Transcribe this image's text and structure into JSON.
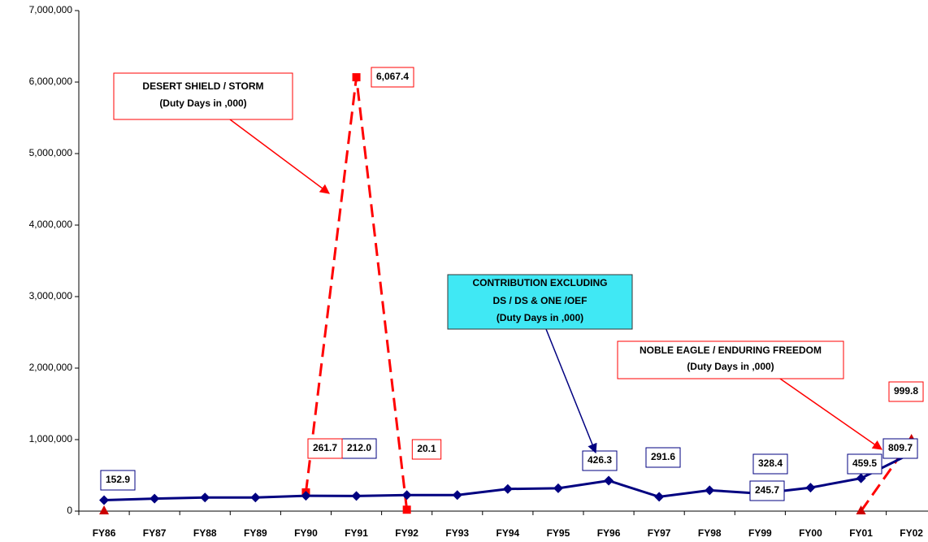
{
  "chart_data": {
    "type": "line",
    "categories": [
      "FY86",
      "FY87",
      "FY88",
      "FY89",
      "FY90",
      "FY91",
      "FY92",
      "FY93",
      "FY94",
      "FY95",
      "FY96",
      "FY97",
      "FY98",
      "FY99",
      "FY00",
      "FY01",
      "FY02"
    ],
    "series": [
      {
        "color": "#000080",
        "dash": false,
        "marker": "diamond",
        "values": [
          152900,
          175000,
          190000,
          190000,
          215000,
          212000,
          225000,
          225000,
          310000,
          320000,
          426300,
          200000,
          291600,
          245700,
          328400,
          459500,
          809700
        ],
        "value_labels": [
          "152.9",
          null,
          null,
          null,
          null,
          "212.0",
          null,
          null,
          null,
          null,
          "426.3",
          null,
          "291.6",
          "245.7",
          "328.4",
          "459.5",
          "809.7"
        ]
      },
      {
        "color": "#ff0000",
        "dash": true,
        "marker": "square",
        "values": [
          null,
          null,
          null,
          null,
          261700,
          6067400,
          20100,
          null,
          null,
          null,
          null,
          null,
          null,
          null,
          null,
          null,
          null
        ],
        "value_labels": [
          null,
          null,
          null,
          null,
          "261.7",
          "6,067.4",
          "20.1",
          null,
          null,
          null,
          null,
          null,
          null,
          null,
          null,
          null,
          null
        ]
      },
      {
        "color": "#ff0000",
        "dash": true,
        "marker": "triangle",
        "values": [
          0,
          null,
          null,
          null,
          null,
          null,
          null,
          null,
          null,
          null,
          null,
          null,
          null,
          null,
          null,
          0,
          999800
        ],
        "value_labels": [
          null,
          null,
          null,
          null,
          null,
          null,
          null,
          null,
          null,
          null,
          null,
          null,
          null,
          null,
          null,
          null,
          "999.8"
        ]
      }
    ],
    "ylim": [
      0,
      7000000
    ],
    "yticks": [
      0,
      {
        "value": 1000000,
        "label": "1,000,000"
      },
      {
        "value": 2000000,
        "label": "2,000,000"
      },
      {
        "value": 3000000,
        "label": "3,000,000"
      },
      {
        "value": 4000000,
        "label": "4,000,000"
      },
      {
        "value": 5000000,
        "label": "5,000,000"
      },
      {
        "value": 6000000,
        "label": "6,000,000"
      },
      {
        "value": 7000000,
        "label": "7,000,000"
      }
    ],
    "annotations": [
      {
        "lines": [
          "DESERT SHIELD / STORM",
          "(Duty Days in ,000)"
        ]
      },
      {
        "lines": [
          "CONTRIBUTION EXCLUDING",
          "DS / DS & ONE /OEF",
          "(Duty Days in ,000)"
        ]
      },
      {
        "lines": [
          "NOBLE EAGLE / ENDURING FREEDOM",
          "(Duty Days in ,000)"
        ]
      }
    ]
  }
}
